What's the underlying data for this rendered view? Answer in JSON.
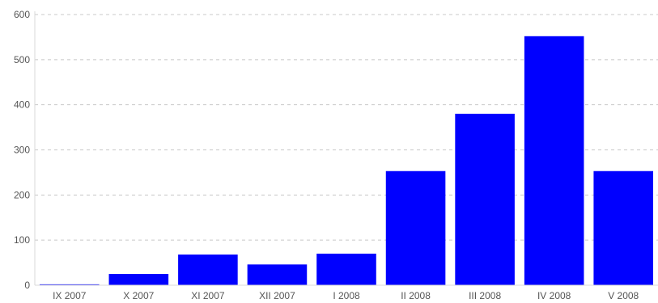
{
  "chart_data": {
    "type": "bar",
    "title": "",
    "xlabel": "",
    "ylabel": "",
    "categories": [
      "IX 2007",
      "X 2007",
      "XI 2007",
      "XII 2007",
      "I 2008",
      "II 2008",
      "III 2008",
      "IV 2008",
      "V 2008"
    ],
    "values": [
      2,
      25,
      68,
      46,
      70,
      253,
      380,
      552,
      253
    ],
    "ylim": [
      0,
      600
    ],
    "yticks": [
      0,
      100,
      200,
      300,
      400,
      500,
      600
    ],
    "ytick_labels": [
      "0",
      "100",
      "200",
      "300",
      "400",
      "500",
      "600"
    ],
    "grid": true,
    "legend": "none",
    "bar_color": "#0000ff",
    "grid_color": "#c8c8c8",
    "text_color": "#555555"
  }
}
